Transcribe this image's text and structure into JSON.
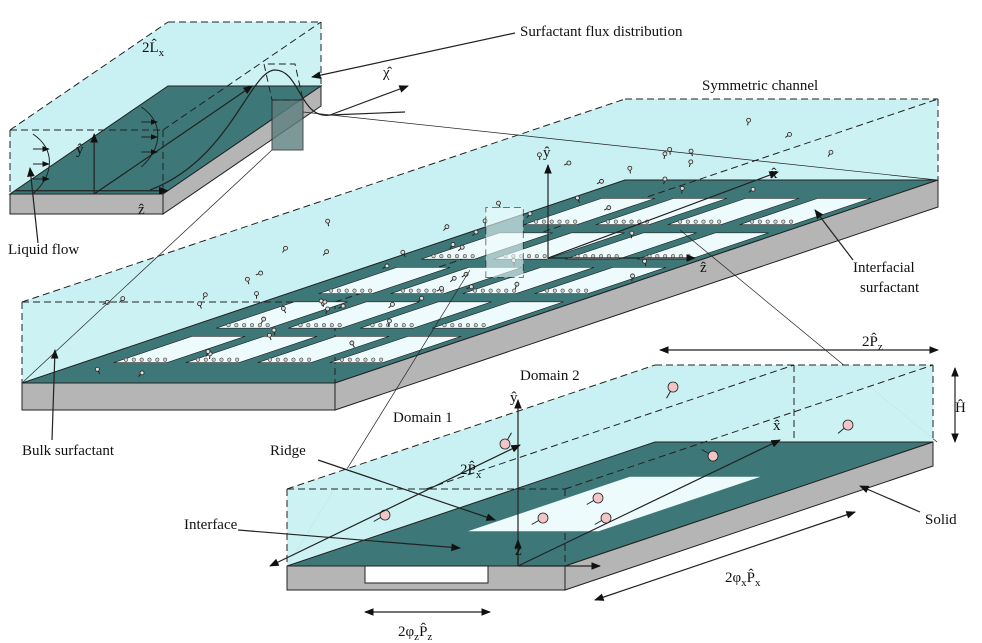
{
  "labels": {
    "length_x": [
      "2L̂",
      "x"
    ],
    "flux": "Surfactant flux distribution",
    "chi": "χ̂",
    "symmetric": "Symmetric channel",
    "inset_y": "ŷ",
    "inset_z": "ẑ",
    "liquid_flow": "Liquid flow",
    "channel_y": "ŷ",
    "channel_x": "x̂",
    "channel_z": "ẑ",
    "interfacial": [
      "Interfacial",
      "surfactant"
    ],
    "bulk": "Bulk surfactant",
    "period_z": [
      "2P̂",
      "z"
    ],
    "domain2": "Domain 2",
    "domain1": "Domain 1",
    "domain_y": "ŷ",
    "domain_x": "x̂",
    "domain_z": "ẑ",
    "height": "Ĥ",
    "ridge": "Ridge",
    "interface": "Interface",
    "solid": "Solid",
    "period_x": [
      "2P̂",
      "x"
    ],
    "frac_x": [
      "2φ",
      "x",
      "P̂",
      "x"
    ],
    "frac_z": [
      "2φ",
      "z",
      "P̂",
      "z"
    ]
  }
}
